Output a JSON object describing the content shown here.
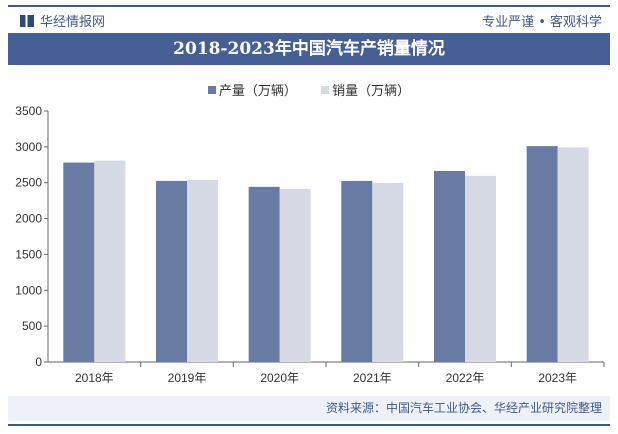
{
  "header": {
    "brand": "华经情报网",
    "slogan": "专业严谨 • 客观科学"
  },
  "title": "2018-2023年中国汽车产销量情况",
  "source": "资料来源：中国汽车工业协会、华经产业研究院整理",
  "chart_data": {
    "type": "bar",
    "title": "2018-2023年中国汽车产销量情况",
    "categories": [
      "2018年",
      "2019年",
      "2020年",
      "2021年",
      "2022年",
      "2023年"
    ],
    "series": [
      {
        "name": "产量（万辆）",
        "color": "#677ba3",
        "values": [
          2781,
          2525,
          2442,
          2525,
          2664,
          3010
        ]
      },
      {
        "name": "销量（万辆）",
        "color": "#d5dae5",
        "values": [
          2808,
          2540,
          2414,
          2498,
          2595,
          2992
        ]
      }
    ],
    "ylim": [
      0,
      3500
    ],
    "yticks": [
      0,
      500,
      1000,
      1500,
      2000,
      2500,
      3000,
      3500
    ],
    "grid": false,
    "legend": "top-center"
  }
}
